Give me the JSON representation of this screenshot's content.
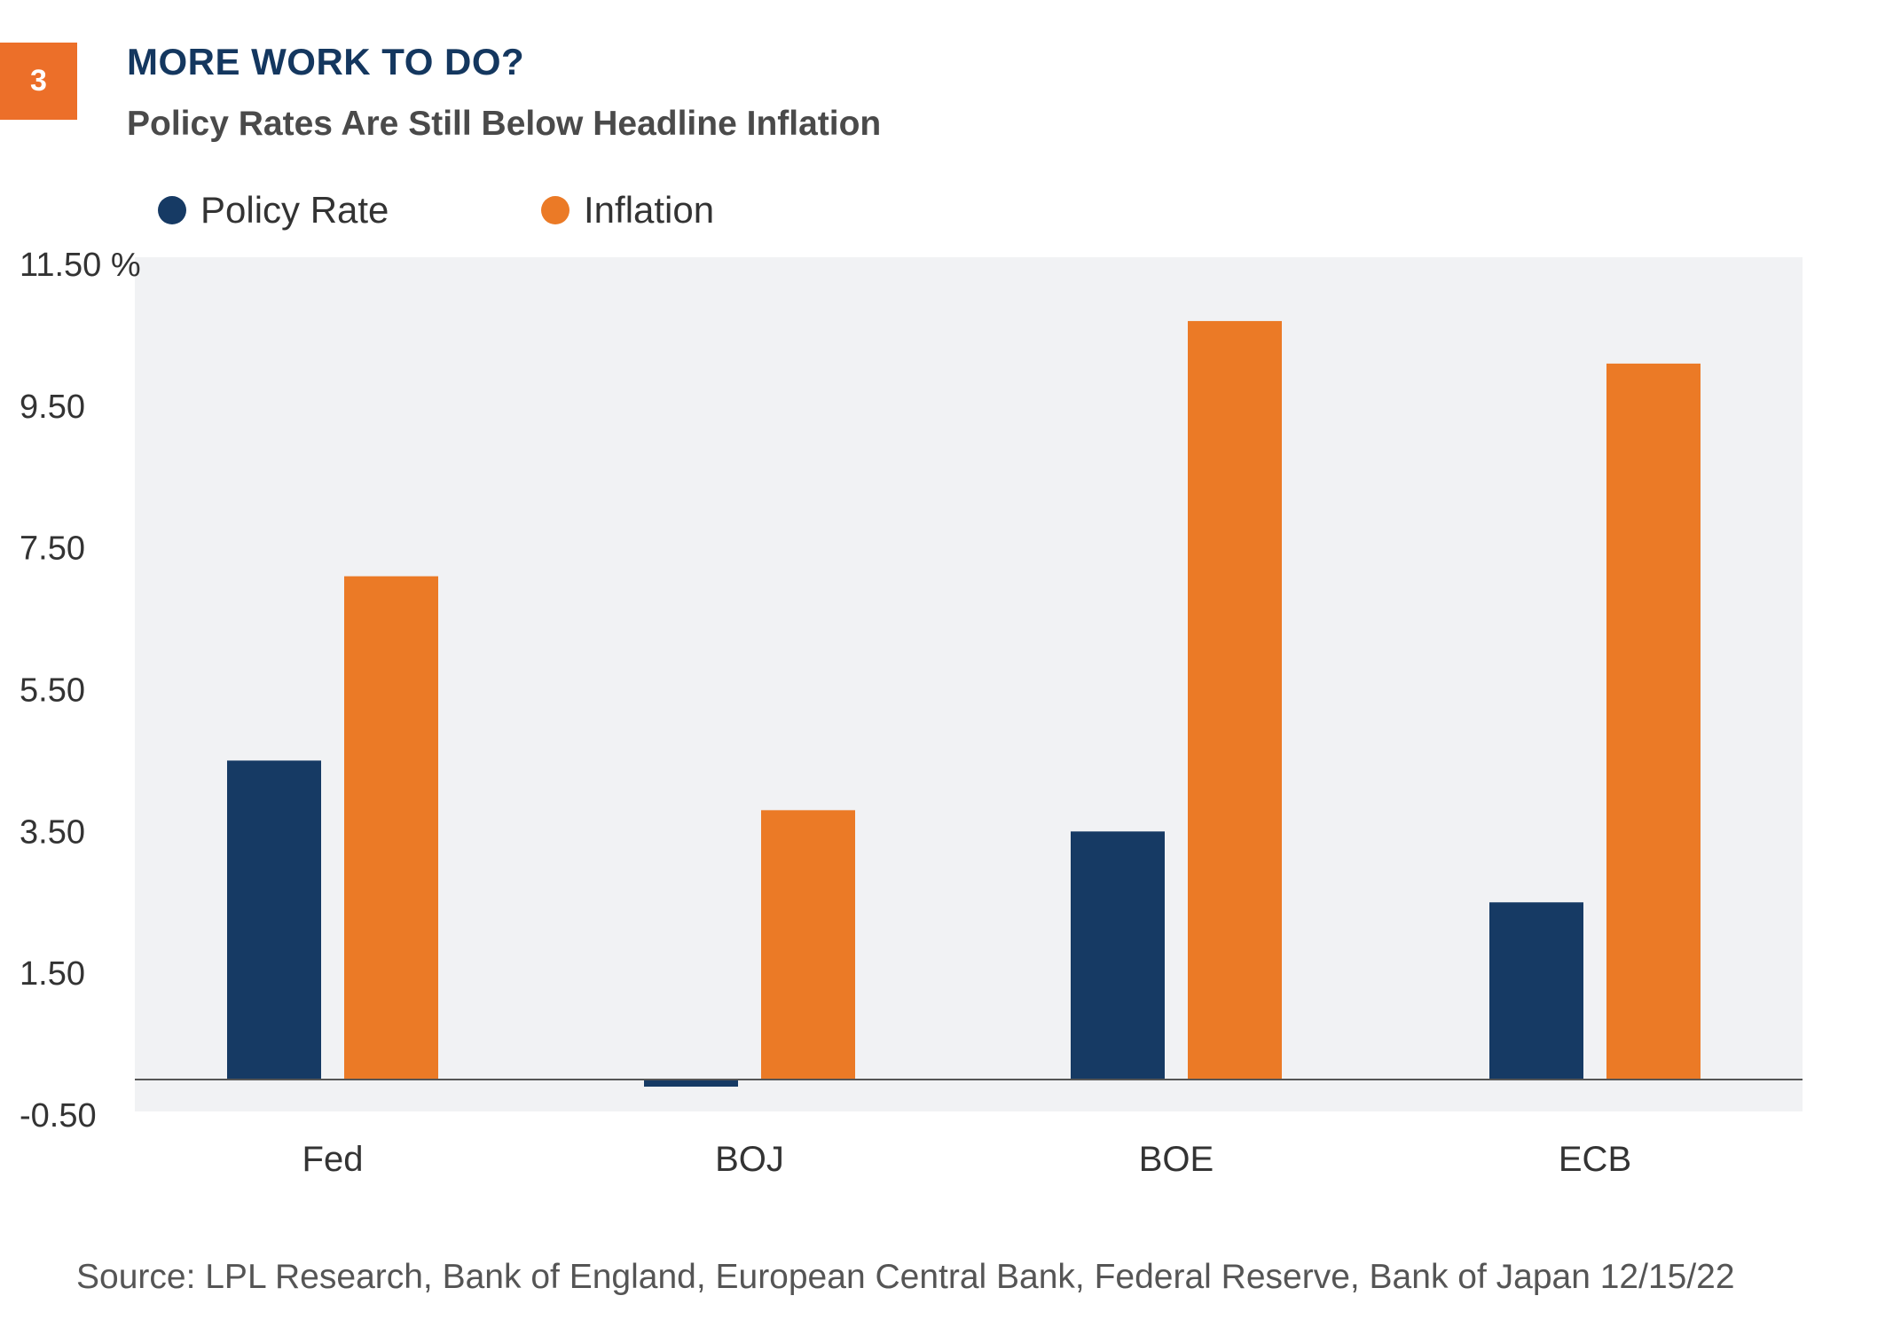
{
  "figure_number": "3",
  "title": "MORE WORK TO DO?",
  "subtitle": "Policy Rates Are Still Below Headline Inflation",
  "source": "Source: LPL Research, Bank of England, European Central Bank, Federal Reserve, Bank of Japan  12/15/22",
  "colors": {
    "badge": "#ec6f29",
    "policy_rate": "#163a64",
    "inflation": "#eb7a26",
    "plot_background": "#f1f2f4",
    "title": "#14375f"
  },
  "chart_data": {
    "type": "bar",
    "categories": [
      "Fed",
      "BOJ",
      "BOE",
      "ECB"
    ],
    "series": [
      {
        "name": "Policy Rate",
        "values": [
          4.5,
          -0.1,
          3.5,
          2.5
        ],
        "color": "#163a64"
      },
      {
        "name": "Inflation",
        "values": [
          7.1,
          3.8,
          10.7,
          10.1
        ],
        "color": "#eb7a26"
      }
    ],
    "yticks": [
      "11.50 %",
      "9.50",
      "7.50",
      "5.50",
      "3.50",
      "1.50",
      "-0.50"
    ],
    "ytick_values": [
      11.5,
      9.5,
      7.5,
      5.5,
      3.5,
      1.5,
      -0.5
    ],
    "ylim": [
      -0.5,
      11.5
    ],
    "xlabel": "",
    "ylabel": "",
    "grid": false,
    "legend_position": "top-left"
  }
}
